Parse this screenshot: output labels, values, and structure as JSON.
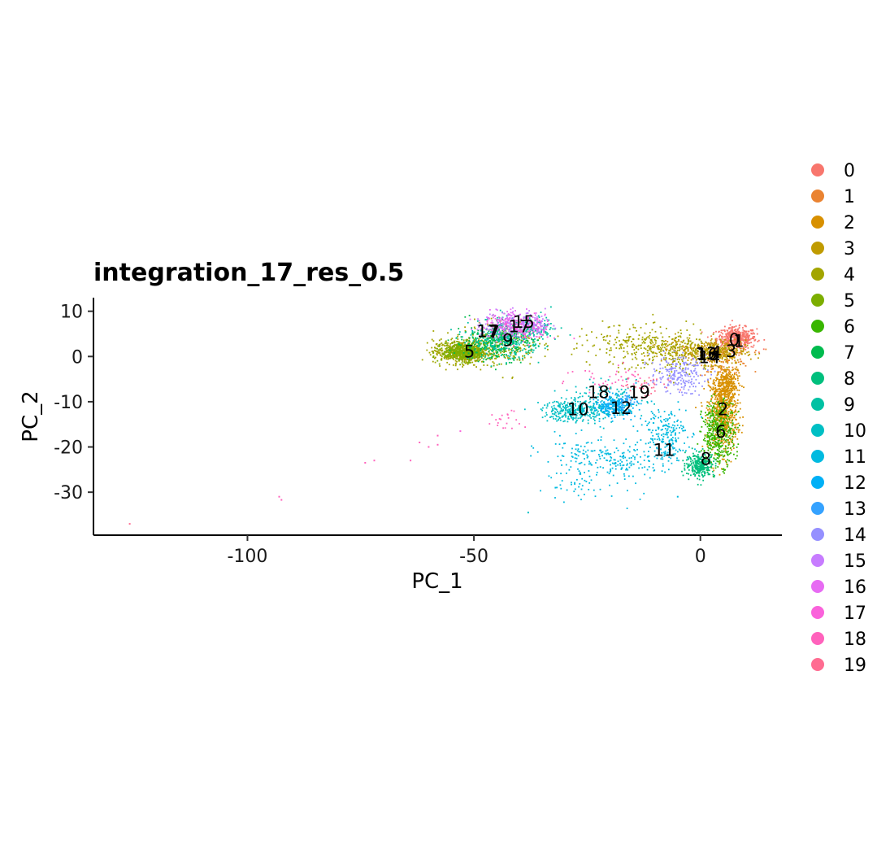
{
  "chart_data": {
    "type": "scatter",
    "title": "integration_17_res_0.5",
    "xlabel": "PC_1",
    "ylabel": "PC_2",
    "xlim": [
      -134,
      18
    ],
    "ylim": [
      -39.5,
      13
    ],
    "xticks": [
      -100,
      -50,
      0
    ],
    "yticks": [
      10,
      0,
      -10,
      -20,
      -30
    ],
    "grid": false,
    "legend_position": "right",
    "legend": [
      "0",
      "1",
      "2",
      "3",
      "4",
      "5",
      "6",
      "7",
      "8",
      "9",
      "10",
      "11",
      "12",
      "13",
      "14",
      "15",
      "16",
      "17",
      "18",
      "19"
    ],
    "colors": [
      "#F8766D",
      "#EA8331",
      "#D89000",
      "#C09B00",
      "#A3A500",
      "#7CAE00",
      "#39B600",
      "#00BB4E",
      "#00BF7D",
      "#00C1A3",
      "#00BFC4",
      "#00BAE0",
      "#00B0F6",
      "#35A2FF",
      "#9590FF",
      "#C77CFF",
      "#E76BF3",
      "#FA62DB",
      "#FF62BC",
      "#FF6C91"
    ],
    "clusters": [
      {
        "name": "0",
        "blobs": [
          [
            8,
            4,
            2.2,
            1.2,
            450
          ]
        ]
      },
      {
        "name": "1",
        "blobs": [
          [
            5,
            0,
            3,
            2,
            120
          ]
        ]
      },
      {
        "name": "2",
        "blobs": [
          [
            5,
            -12,
            1.6,
            4.5,
            700
          ],
          [
            6,
            -6,
            1.2,
            2,
            200
          ]
        ]
      },
      {
        "name": "3",
        "blobs": [
          [
            3,
            1,
            3.5,
            1.3,
            300
          ],
          [
            -3,
            2,
            5,
            1.2,
            120
          ]
        ]
      },
      {
        "name": "4",
        "blobs": [
          [
            -53,
            1,
            3,
            1.3,
            550
          ],
          [
            -44,
            3,
            4,
            2.5,
            250
          ],
          [
            -8,
            1,
            6,
            2.5,
            300
          ],
          [
            -18,
            4,
            7,
            1.5,
            80
          ]
        ]
      },
      {
        "name": "5",
        "blobs": [
          [
            -52,
            1,
            2.5,
            1,
            400
          ]
        ]
      },
      {
        "name": "6",
        "blobs": [
          [
            4,
            -17,
            1.8,
            3.5,
            400
          ]
        ]
      },
      {
        "name": "7",
        "blobs": [
          [
            -46,
            3,
            4,
            2,
            250
          ],
          [
            -42,
            4,
            3,
            1.5,
            100
          ]
        ]
      },
      {
        "name": "8",
        "blobs": [
          [
            0,
            -24,
            1.6,
            1.3,
            280
          ]
        ]
      },
      {
        "name": "9",
        "blobs": [
          [
            -43,
            4,
            4,
            2.2,
            300
          ],
          [
            -36,
            6,
            2.5,
            1.5,
            80
          ]
        ]
      },
      {
        "name": "10",
        "blobs": [
          [
            -28,
            -12,
            3.5,
            1.2,
            280
          ],
          [
            -20,
            -10,
            4,
            2,
            150
          ]
        ]
      },
      {
        "name": "11",
        "blobs": [
          [
            -8,
            -17,
            2.5,
            3,
            200
          ],
          [
            -18,
            -23,
            6,
            2,
            180
          ],
          [
            -25,
            -28,
            6,
            2,
            50
          ],
          [
            -28,
            -21,
            4,
            2,
            40
          ]
        ]
      },
      {
        "name": "12",
        "blobs": [
          [
            -19,
            -11,
            2.5,
            1.2,
            200
          ]
        ]
      },
      {
        "name": "13",
        "blobs": [
          [
            -17,
            -10,
            1.2,
            1,
            30
          ]
        ]
      },
      {
        "name": "14",
        "blobs": [
          [
            -5,
            -4,
            3,
            2,
            200
          ]
        ]
      },
      {
        "name": "15",
        "blobs": [
          [
            -41,
            7,
            3.5,
            1.5,
            200
          ],
          [
            -36,
            7,
            2,
            1,
            40
          ]
        ]
      },
      {
        "name": "16",
        "blobs": [
          [
            -42,
            8,
            3,
            1.2,
            80
          ]
        ]
      },
      {
        "name": "17",
        "blobs": [
          [
            -40,
            6,
            4,
            1.5,
            120
          ]
        ]
      },
      {
        "name": "18",
        "blobs": [
          [
            -20,
            -5,
            5,
            1.5,
            40
          ],
          [
            -43,
            -14,
            2,
            1.5,
            20
          ]
        ]
      },
      {
        "name": "19",
        "blobs": [
          [
            -13,
            -7,
            3,
            1.5,
            40
          ]
        ]
      }
    ],
    "outliers": [
      {
        "x": -126,
        "y": -37,
        "cluster": "19"
      },
      {
        "x": -93,
        "y": -31,
        "cluster": "18"
      },
      {
        "x": -92.5,
        "y": -31.7,
        "cluster": "18"
      },
      {
        "x": -74,
        "y": -23.5,
        "cluster": "18"
      },
      {
        "x": -72,
        "y": -23,
        "cluster": "18"
      },
      {
        "x": -64,
        "y": -23,
        "cluster": "18"
      },
      {
        "x": -62,
        "y": -19,
        "cluster": "18"
      },
      {
        "x": -60,
        "y": -20,
        "cluster": "18"
      },
      {
        "x": -58,
        "y": -17.5,
        "cluster": "18"
      },
      {
        "x": -58,
        "y": -19.5,
        "cluster": "18"
      },
      {
        "x": -53,
        "y": -16.5,
        "cluster": "17"
      },
      {
        "x": -38,
        "y": -34.5,
        "cluster": "10"
      },
      {
        "x": -5,
        "y": -31,
        "cluster": "11"
      },
      {
        "x": -32,
        "y": -29,
        "cluster": "11"
      }
    ],
    "cluster_labels": [
      {
        "text": "0",
        "x": 7.5,
        "y": 3.8
      },
      {
        "text": "1",
        "x": 8.5,
        "y": 3.6
      },
      {
        "text": "2",
        "x": 5,
        "y": -11.5
      },
      {
        "text": "3",
        "x": 6.8,
        "y": 1.3
      },
      {
        "text": "4",
        "x": 3.5,
        "y": 1
      },
      {
        "text": "5",
        "x": -51,
        "y": 1.2
      },
      {
        "text": "6",
        "x": 4.5,
        "y": -16.5
      },
      {
        "text": "7",
        "x": -45.5,
        "y": 5.5
      },
      {
        "text": "8",
        "x": 1.2,
        "y": -22.5
      },
      {
        "text": "9",
        "x": -42.5,
        "y": 3.7
      },
      {
        "text": "10",
        "x": -27,
        "y": -11.5
      },
      {
        "text": "11",
        "x": -8,
        "y": -20.5
      },
      {
        "text": "12",
        "x": -17.5,
        "y": -11.3
      },
      {
        "text": "13",
        "x": 1.3,
        "y": 0.8
      },
      {
        "text": "14",
        "x": 2,
        "y": 0
      },
      {
        "text": "15",
        "x": -39,
        "y": 7.8
      },
      {
        "text": "16",
        "x": 1.6,
        "y": 0.6
      },
      {
        "text": "17",
        "x": -47,
        "y": 5.7
      },
      {
        "text": "17",
        "x": -40,
        "y": 6.8
      },
      {
        "text": "18",
        "x": -22.5,
        "y": -7.8
      },
      {
        "text": "19",
        "x": -13.5,
        "y": -7.8
      }
    ]
  }
}
